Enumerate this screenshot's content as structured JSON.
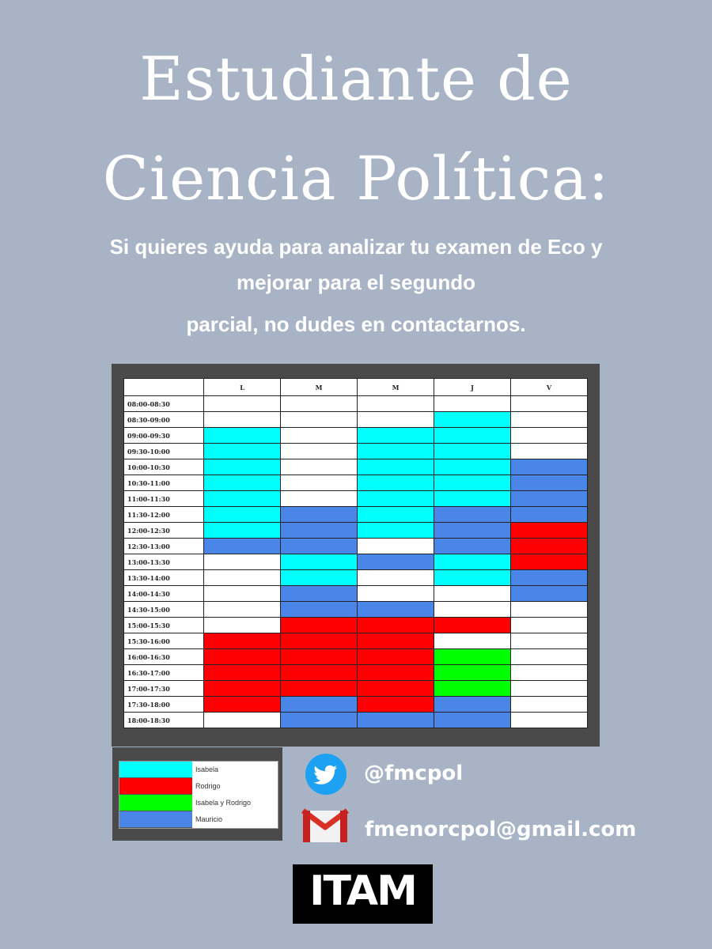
{
  "title": {
    "line1": "Estudiante de",
    "line2": "Ciencia Política:"
  },
  "subtitle": {
    "line1": "Si quieres ayuda para analizar tu examen de Eco y",
    "line2": "mejorar para el segundo",
    "line3": "parcial, no dudes en contactarnos."
  },
  "schedule": {
    "days": [
      "L",
      "M",
      "M",
      "J",
      "V"
    ],
    "time_slots": [
      "08:00-08:30",
      "08:30-09:00",
      "09:00-09:30",
      "09:30-10:00",
      "10:00-10:30",
      "10:30-11:00",
      "11:00-11:30",
      "11:30-12:00",
      "12:00-12:30",
      "12:30-13:00",
      "13:00-13:30",
      "13:30-14:00",
      "14:00-14:30",
      "14:30-15:00",
      "15:00-15:30",
      "15:30-16:00",
      "16:00-16:30",
      "16:30-17:00",
      "17:00-17:30",
      "17:30-18:00",
      "18:00-18:30"
    ],
    "cells": [
      [
        "",
        "",
        "",
        "",
        ""
      ],
      [
        "",
        "",
        "",
        "I",
        ""
      ],
      [
        "I",
        "",
        "I",
        "I",
        ""
      ],
      [
        "I",
        "",
        "I",
        "I",
        ""
      ],
      [
        "I",
        "",
        "I",
        "I",
        "M"
      ],
      [
        "I",
        "",
        "I",
        "I",
        "M"
      ],
      [
        "I",
        "",
        "I",
        "I",
        "M"
      ],
      [
        "I",
        "M",
        "I",
        "M",
        "M"
      ],
      [
        "I",
        "M",
        "I",
        "M",
        "R"
      ],
      [
        "M",
        "M",
        "",
        "M",
        "R"
      ],
      [
        "",
        "I",
        "M",
        "I",
        "R"
      ],
      [
        "",
        "I",
        "",
        "I",
        "M"
      ],
      [
        "",
        "M",
        "",
        "",
        "M"
      ],
      [
        "",
        "M",
        "M",
        "",
        ""
      ],
      [
        "",
        "R",
        "R",
        "R",
        ""
      ],
      [
        "R",
        "R",
        "R",
        "",
        ""
      ],
      [
        "R",
        "R",
        "R",
        "B",
        ""
      ],
      [
        "R",
        "R",
        "R",
        "B",
        ""
      ],
      [
        "R",
        "R",
        "R",
        "B",
        ""
      ],
      [
        "R",
        "M",
        "R",
        "M",
        ""
      ],
      [
        "",
        "M",
        "M",
        "M",
        ""
      ]
    ],
    "colors": {
      "": "#ffffff",
      "I": "#00ffff",
      "R": "#ff0000",
      "B": "#00ff00",
      "M": "#4a86e8"
    }
  },
  "legend": [
    {
      "label": "Isabela",
      "color": "#00ffff"
    },
    {
      "label": "Rodrigo",
      "color": "#ff0000"
    },
    {
      "label": "Isabela y Rodrigo",
      "color": "#00ff00"
    },
    {
      "label": "Mauricio",
      "color": "#4a86e8"
    }
  ],
  "contacts": {
    "twitter_icon": "twitter-bird-icon",
    "twitter": "@fmcpol",
    "email_icon": "gmail-envelope-icon",
    "email": "fmenorcpol@gmail.com"
  },
  "logo": {
    "text": "ITAM"
  }
}
